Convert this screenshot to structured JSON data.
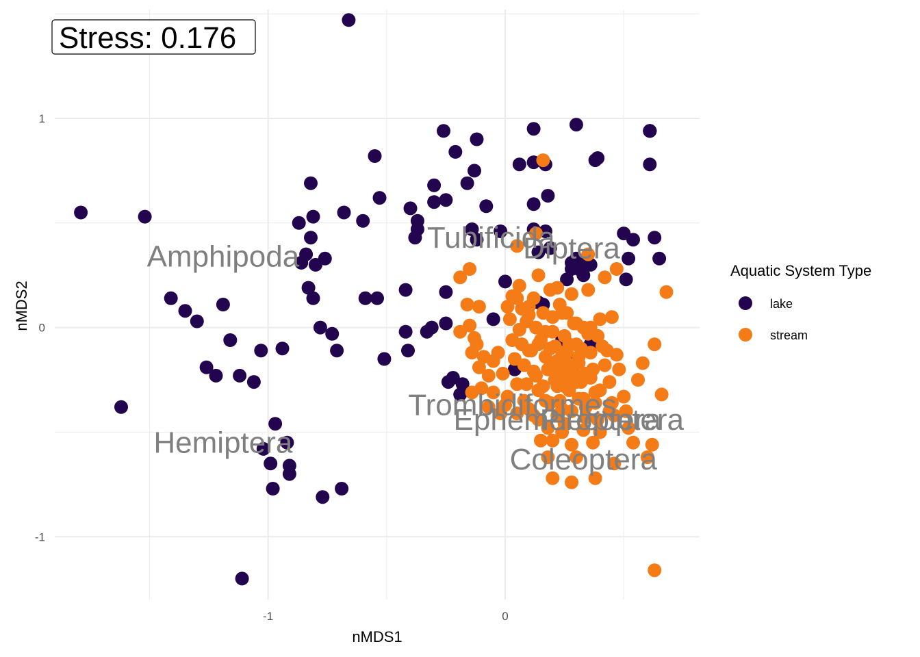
{
  "chart_data": {
    "type": "scatter",
    "xlabel": "nMDS1",
    "ylabel": "nMDS2",
    "xlim": [
      -1.9,
      0.82
    ],
    "ylim": [
      -1.3,
      1.52
    ],
    "xticks": [
      -1,
      0
    ],
    "yticks": [
      -1,
      0,
      1
    ],
    "grid": true,
    "stress_label": "Stress:  0.176",
    "legend": {
      "title": "Aquatic System Type",
      "placement": "right",
      "entries": [
        {
          "name": "lake",
          "color": "#23054f"
        },
        {
          "name": "stream",
          "color": "#f47b16"
        }
      ]
    },
    "taxa_labels": [
      {
        "text": "Amphipoda",
        "x": -1.19,
        "y": 0.34
      },
      {
        "text": "Tubificida",
        "x": -0.06,
        "y": 0.43
      },
      {
        "text": "Diptera",
        "x": 0.28,
        "y": 0.38
      },
      {
        "text": "Hemiptera",
        "x": -1.19,
        "y": -0.55
      },
      {
        "text": "Trombidiformes",
        "x": 0.03,
        "y": -0.37
      },
      {
        "text": "Ephemeroptera",
        "x": 0.22,
        "y": -0.44
      },
      {
        "text": "Plecoptera",
        "x": 0.45,
        "y": -0.44
      },
      {
        "text": "Coleoptera",
        "x": 0.33,
        "y": -0.63
      }
    ],
    "series": [
      {
        "name": "lake",
        "color": "#23054f",
        "points": [
          [
            -1.79,
            0.55
          ],
          [
            -1.62,
            -0.38
          ],
          [
            -1.52,
            0.53
          ],
          [
            -1.41,
            0.14
          ],
          [
            -1.35,
            0.08
          ],
          [
            -1.3,
            0.03
          ],
          [
            -1.26,
            -0.19
          ],
          [
            -1.22,
            -0.23
          ],
          [
            -1.19,
            0.11
          ],
          [
            -1.16,
            -0.06
          ],
          [
            -1.12,
            -0.23
          ],
          [
            -1.06,
            -0.26
          ],
          [
            -1.03,
            -0.11
          ],
          [
            -1.02,
            -0.58
          ],
          [
            -0.99,
            -0.65
          ],
          [
            -0.98,
            -0.77
          ],
          [
            -0.97,
            -0.46
          ],
          [
            -0.94,
            -0.1
          ],
          [
            -0.92,
            -0.55
          ],
          [
            -0.91,
            -0.66
          ],
          [
            -0.91,
            -0.7
          ],
          [
            -0.87,
            0.5
          ],
          [
            -0.86,
            0.31
          ],
          [
            -0.84,
            0.35
          ],
          [
            -0.83,
            0.19
          ],
          [
            -0.82,
            0.69
          ],
          [
            -0.82,
            0.43
          ],
          [
            -0.81,
            0.53
          ],
          [
            -0.81,
            0.14
          ],
          [
            -0.8,
            0.3
          ],
          [
            -0.78,
            0.0
          ],
          [
            -0.77,
            -0.81
          ],
          [
            -0.76,
            0.33
          ],
          [
            -0.73,
            -0.03
          ],
          [
            -0.71,
            -0.11
          ],
          [
            -0.69,
            -0.77
          ],
          [
            -0.68,
            0.55
          ],
          [
            -0.66,
            1.47
          ],
          [
            -0.6,
            0.51
          ],
          [
            -0.59,
            0.14
          ],
          [
            -0.55,
            0.82
          ],
          [
            -0.54,
            0.14
          ],
          [
            -0.53,
            0.62
          ],
          [
            -0.51,
            -0.15
          ],
          [
            -0.42,
            0.18
          ],
          [
            -0.42,
            -0.02
          ],
          [
            -0.41,
            -0.11
          ],
          [
            -0.4,
            0.57
          ],
          [
            -0.38,
            0.43
          ],
          [
            -0.37,
            0.47
          ],
          [
            -0.37,
            0.51
          ],
          [
            -0.33,
            -0.02
          ],
          [
            -0.31,
            0.0
          ],
          [
            -0.3,
            0.68
          ],
          [
            -0.3,
            0.6
          ],
          [
            -0.26,
            0.94
          ],
          [
            -0.25,
            0.61
          ],
          [
            -0.25,
            0.17
          ],
          [
            -0.25,
            0.02
          ],
          [
            -0.24,
            -0.26
          ],
          [
            -0.22,
            -0.24
          ],
          [
            -0.21,
            0.84
          ],
          [
            -0.19,
            -0.32
          ],
          [
            -0.18,
            -0.27
          ],
          [
            -0.16,
            0.69
          ],
          [
            -0.14,
            0.47
          ],
          [
            -0.13,
            0.75
          ],
          [
            -0.12,
            0.9
          ],
          [
            -0.12,
            0.42
          ],
          [
            -0.08,
            0.58
          ],
          [
            -0.05,
            0.04
          ],
          [
            -0.02,
            0.46
          ],
          [
            0.0,
            0.22
          ],
          [
            0.04,
            -0.2
          ],
          [
            0.06,
            0.78
          ],
          [
            0.12,
            0.95
          ],
          [
            0.12,
            0.47
          ],
          [
            0.12,
            0.79
          ],
          [
            0.12,
            0.59
          ],
          [
            0.14,
            0.12
          ],
          [
            0.14,
            0.36
          ],
          [
            0.17,
            0.78
          ],
          [
            0.17,
            0.46
          ],
          [
            0.18,
            0.63
          ],
          [
            0.19,
            0.38
          ],
          [
            0.26,
            0.23
          ],
          [
            0.28,
            0.31
          ],
          [
            0.28,
            0.28
          ],
          [
            0.3,
            0.97
          ],
          [
            0.3,
            0.33
          ],
          [
            0.31,
            0.28
          ],
          [
            0.33,
            0.25
          ],
          [
            0.35,
            0.31
          ],
          [
            0.36,
            0.3
          ],
          [
            0.38,
            0.8
          ],
          [
            0.39,
            0.81
          ],
          [
            0.5,
            0.45
          ],
          [
            0.51,
            0.23
          ],
          [
            0.52,
            0.33
          ],
          [
            0.54,
            0.42
          ],
          [
            0.61,
            0.94
          ],
          [
            0.61,
            0.94
          ],
          [
            0.61,
            0.94
          ],
          [
            0.61,
            0.94
          ],
          [
            0.61,
            0.78
          ],
          [
            0.63,
            0.43
          ],
          [
            0.65,
            0.33
          ],
          [
            -1.11,
            -1.2
          ],
          [
            0.36,
            -0.08
          ],
          [
            0.36,
            -0.1
          ],
          [
            0.24,
            -0.06
          ],
          [
            0.28,
            -0.16
          ],
          [
            0.16,
            0.11
          ]
        ]
      },
      {
        "name": "stream",
        "color": "#f47b16",
        "points": [
          [
            0.05,
            0.39
          ],
          [
            -0.15,
            0.28
          ],
          [
            -0.19,
            0.24
          ],
          [
            -0.16,
            0.11
          ],
          [
            -0.19,
            -0.02
          ],
          [
            -0.15,
            0.01
          ],
          [
            -0.13,
            -0.05
          ],
          [
            -0.11,
            0.1
          ],
          [
            -0.12,
            -0.08
          ],
          [
            -0.14,
            -0.12
          ],
          [
            -0.11,
            -0.19
          ],
          [
            -0.09,
            -0.14
          ],
          [
            -0.07,
            -0.23
          ],
          [
            -0.05,
            -0.16
          ],
          [
            -0.03,
            -0.12
          ],
          [
            -0.01,
            -0.22
          ],
          [
            0.01,
            0.1
          ],
          [
            0.02,
            0.04
          ],
          [
            0.03,
            -0.06
          ],
          [
            0.04,
            -0.15
          ],
          [
            0.05,
            0.14
          ],
          [
            0.06,
            -0.01
          ],
          [
            0.07,
            0.09
          ],
          [
            0.08,
            -0.18
          ],
          [
            0.09,
            0.03
          ],
          [
            0.1,
            0.1
          ],
          [
            0.11,
            -0.11
          ],
          [
            0.12,
            0.14
          ],
          [
            0.13,
            0.0
          ],
          [
            0.13,
            -0.23
          ],
          [
            0.14,
            -0.3
          ],
          [
            0.15,
            -0.06
          ],
          [
            0.16,
            0.07
          ],
          [
            0.17,
            -0.14
          ],
          [
            0.18,
            -0.2
          ],
          [
            0.19,
            0.18
          ],
          [
            0.2,
            -0.02
          ],
          [
            0.21,
            -0.09
          ],
          [
            0.22,
            -0.16
          ],
          [
            0.22,
            -0.28
          ],
          [
            0.23,
            -0.35
          ],
          [
            0.24,
            0.07
          ],
          [
            0.25,
            -0.04
          ],
          [
            0.26,
            -0.12
          ],
          [
            0.26,
            -0.22
          ],
          [
            0.27,
            -0.3
          ],
          [
            0.28,
            -0.4
          ],
          [
            0.29,
            0.02
          ],
          [
            0.3,
            -0.08
          ],
          [
            0.31,
            -0.17
          ],
          [
            0.32,
            -0.26
          ],
          [
            0.33,
            -0.34
          ],
          [
            0.34,
            -0.43
          ],
          [
            0.35,
            -0.03
          ],
          [
            0.36,
            -0.12
          ],
          [
            0.37,
            -0.2
          ],
          [
            0.38,
            -0.31
          ],
          [
            0.39,
            -0.44
          ],
          [
            0.4,
            0.04
          ],
          [
            0.41,
            -0.09
          ],
          [
            0.42,
            -0.18
          ],
          [
            0.44,
            -0.26
          ],
          [
            0.45,
            -0.36
          ],
          [
            0.46,
            -0.42
          ],
          [
            0.47,
            -0.13
          ],
          [
            0.48,
            -0.2
          ],
          [
            0.5,
            -0.33
          ],
          [
            0.51,
            -0.4
          ],
          [
            0.52,
            -0.48
          ],
          [
            0.54,
            -0.55
          ],
          [
            0.56,
            -0.25
          ],
          [
            0.58,
            -0.17
          ],
          [
            0.6,
            -0.62
          ],
          [
            0.62,
            -0.56
          ],
          [
            0.63,
            -0.08
          ],
          [
            0.66,
            -0.32
          ],
          [
            0.68,
            0.17
          ],
          [
            0.63,
            -1.16
          ],
          [
            0.47,
            0.28
          ],
          [
            0.42,
            0.24
          ],
          [
            0.35,
            0.18
          ],
          [
            0.28,
            0.16
          ],
          [
            0.22,
            0.19
          ],
          [
            0.14,
            0.25
          ],
          [
            0.1,
            0.06
          ],
          [
            0.06,
            0.2
          ],
          [
            0.03,
            0.15
          ],
          [
            0.13,
            0.45
          ],
          [
            0.16,
            0.8
          ],
          [
            0.35,
            0.35
          ],
          [
            -0.14,
            -0.31
          ],
          [
            -0.1,
            -0.29
          ],
          [
            -0.07,
            -0.38
          ],
          [
            -0.05,
            -0.31
          ],
          [
            0.01,
            -0.33
          ],
          [
            0.05,
            -0.27
          ],
          [
            0.1,
            -0.39
          ],
          [
            0.14,
            -0.44
          ],
          [
            0.18,
            -0.48
          ],
          [
            0.2,
            -0.54
          ],
          [
            0.24,
            -0.5
          ],
          [
            0.28,
            -0.56
          ],
          [
            0.3,
            -0.62
          ],
          [
            0.18,
            -0.62
          ],
          [
            0.2,
            -0.72
          ],
          [
            0.28,
            -0.74
          ],
          [
            0.38,
            -0.72
          ],
          [
            0.46,
            -0.65
          ],
          [
            0.15,
            -0.54
          ],
          [
            0.33,
            -0.49
          ],
          [
            0.37,
            -0.55
          ],
          [
            0.4,
            -0.5
          ],
          [
            0.24,
            -0.39
          ],
          [
            0.28,
            -0.2
          ],
          [
            0.3,
            -0.26
          ],
          [
            0.25,
            -0.28
          ],
          [
            0.21,
            -0.25
          ],
          [
            0.19,
            -0.1
          ],
          [
            0.22,
            -0.19
          ],
          [
            0.26,
            -0.17
          ],
          [
            0.29,
            -0.22
          ],
          [
            0.31,
            -0.14
          ],
          [
            0.34,
            -0.22
          ],
          [
            0.36,
            -0.24
          ],
          [
            0.4,
            -0.3
          ],
          [
            0.24,
            -0.12
          ],
          [
            0.2,
            -0.17
          ],
          [
            0.23,
            -0.22
          ],
          [
            0.26,
            -0.27
          ],
          [
            0.31,
            -0.34
          ],
          [
            0.34,
            -0.38
          ],
          [
            0.38,
            -0.36
          ],
          [
            0.44,
            -0.4
          ],
          [
            0.27,
            -0.08
          ],
          [
            0.32,
            -0.1
          ],
          [
            0.36,
            0.0
          ],
          [
            0.39,
            -0.04
          ],
          [
            0.43,
            -0.11
          ],
          [
            0.45,
            0.05
          ],
          [
            0.17,
            -0.35
          ],
          [
            0.12,
            -0.42
          ],
          [
            0.08,
            -0.35
          ],
          [
            0.05,
            -0.41
          ],
          [
            -0.02,
            -0.41
          ],
          [
            0.0,
            -0.37
          ],
          [
            0.09,
            -0.27
          ],
          [
            0.12,
            -0.21
          ],
          [
            0.16,
            -0.28
          ],
          [
            0.19,
            -0.36
          ],
          [
            0.22,
            -0.42
          ],
          [
            0.25,
            -0.46
          ],
          [
            0.07,
            -0.08
          ],
          [
            0.1,
            -0.11
          ],
          [
            0.14,
            -0.08
          ],
          [
            0.17,
            -0.02
          ],
          [
            0.2,
            0.05
          ],
          [
            0.23,
            0.11
          ],
          [
            0.26,
            0.07
          ],
          [
            0.3,
            0.02
          ],
          [
            0.33,
            0.0
          ]
        ]
      }
    ]
  }
}
